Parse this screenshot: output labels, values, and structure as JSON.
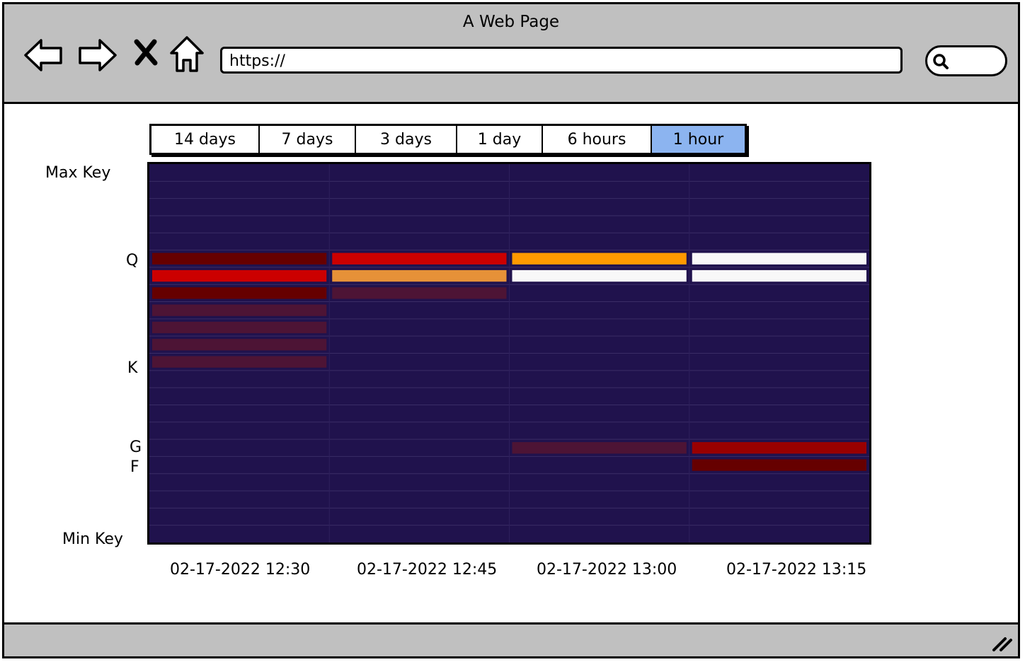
{
  "browser": {
    "title": "A Web Page",
    "url": "https://",
    "icons": [
      "back-arrow-icon",
      "forward-arrow-icon",
      "close-x-icon",
      "home-icon",
      "search-icon",
      "resize-handle-icon"
    ]
  },
  "time_ranges": {
    "options": [
      "14 days",
      "7 days",
      "3 days",
      "1 day",
      "6 hours",
      "1 hour"
    ],
    "selected": "1 hour"
  },
  "chart_data": {
    "type": "heatmap",
    "y_labels": [
      "Max Key",
      "Q",
      "K",
      "G",
      "F",
      "Min Key"
    ],
    "x_labels": [
      "02-17-2022 12:30",
      "02-17-2022 12:45",
      "02-17-2022 13:00",
      "02-17-2022 13:15"
    ],
    "row_count": 22,
    "background": "#20124d",
    "colors": {
      "white": "#f8f8f8",
      "orange": "#ff9900",
      "light_orange": "#e69138",
      "red": "#cc0000",
      "dark_red": "#990000",
      "maroon": "#660000",
      "dim_purple": "#4d1435"
    },
    "cells": [
      {
        "col": 0,
        "row": 5,
        "color": "maroon"
      },
      {
        "col": 0,
        "row": 6,
        "color": "red"
      },
      {
        "col": 0,
        "row": 7,
        "color": "maroon"
      },
      {
        "col": 0,
        "row": 8,
        "color": "dim_purple"
      },
      {
        "col": 0,
        "row": 9,
        "color": "dim_purple"
      },
      {
        "col": 0,
        "row": 10,
        "color": "dim_purple"
      },
      {
        "col": 0,
        "row": 11,
        "color": "dim_purple"
      },
      {
        "col": 1,
        "row": 5,
        "color": "red"
      },
      {
        "col": 1,
        "row": 6,
        "color": "light_orange"
      },
      {
        "col": 1,
        "row": 7,
        "color": "dim_purple"
      },
      {
        "col": 2,
        "row": 5,
        "color": "orange"
      },
      {
        "col": 2,
        "row": 6,
        "color": "white"
      },
      {
        "col": 2,
        "row": 16,
        "color": "dim_purple"
      },
      {
        "col": 3,
        "row": 5,
        "color": "white"
      },
      {
        "col": 3,
        "row": 6,
        "color": "white"
      },
      {
        "col": 3,
        "row": 16,
        "color": "dark_red"
      },
      {
        "col": 3,
        "row": 17,
        "color": "maroon"
      }
    ]
  }
}
